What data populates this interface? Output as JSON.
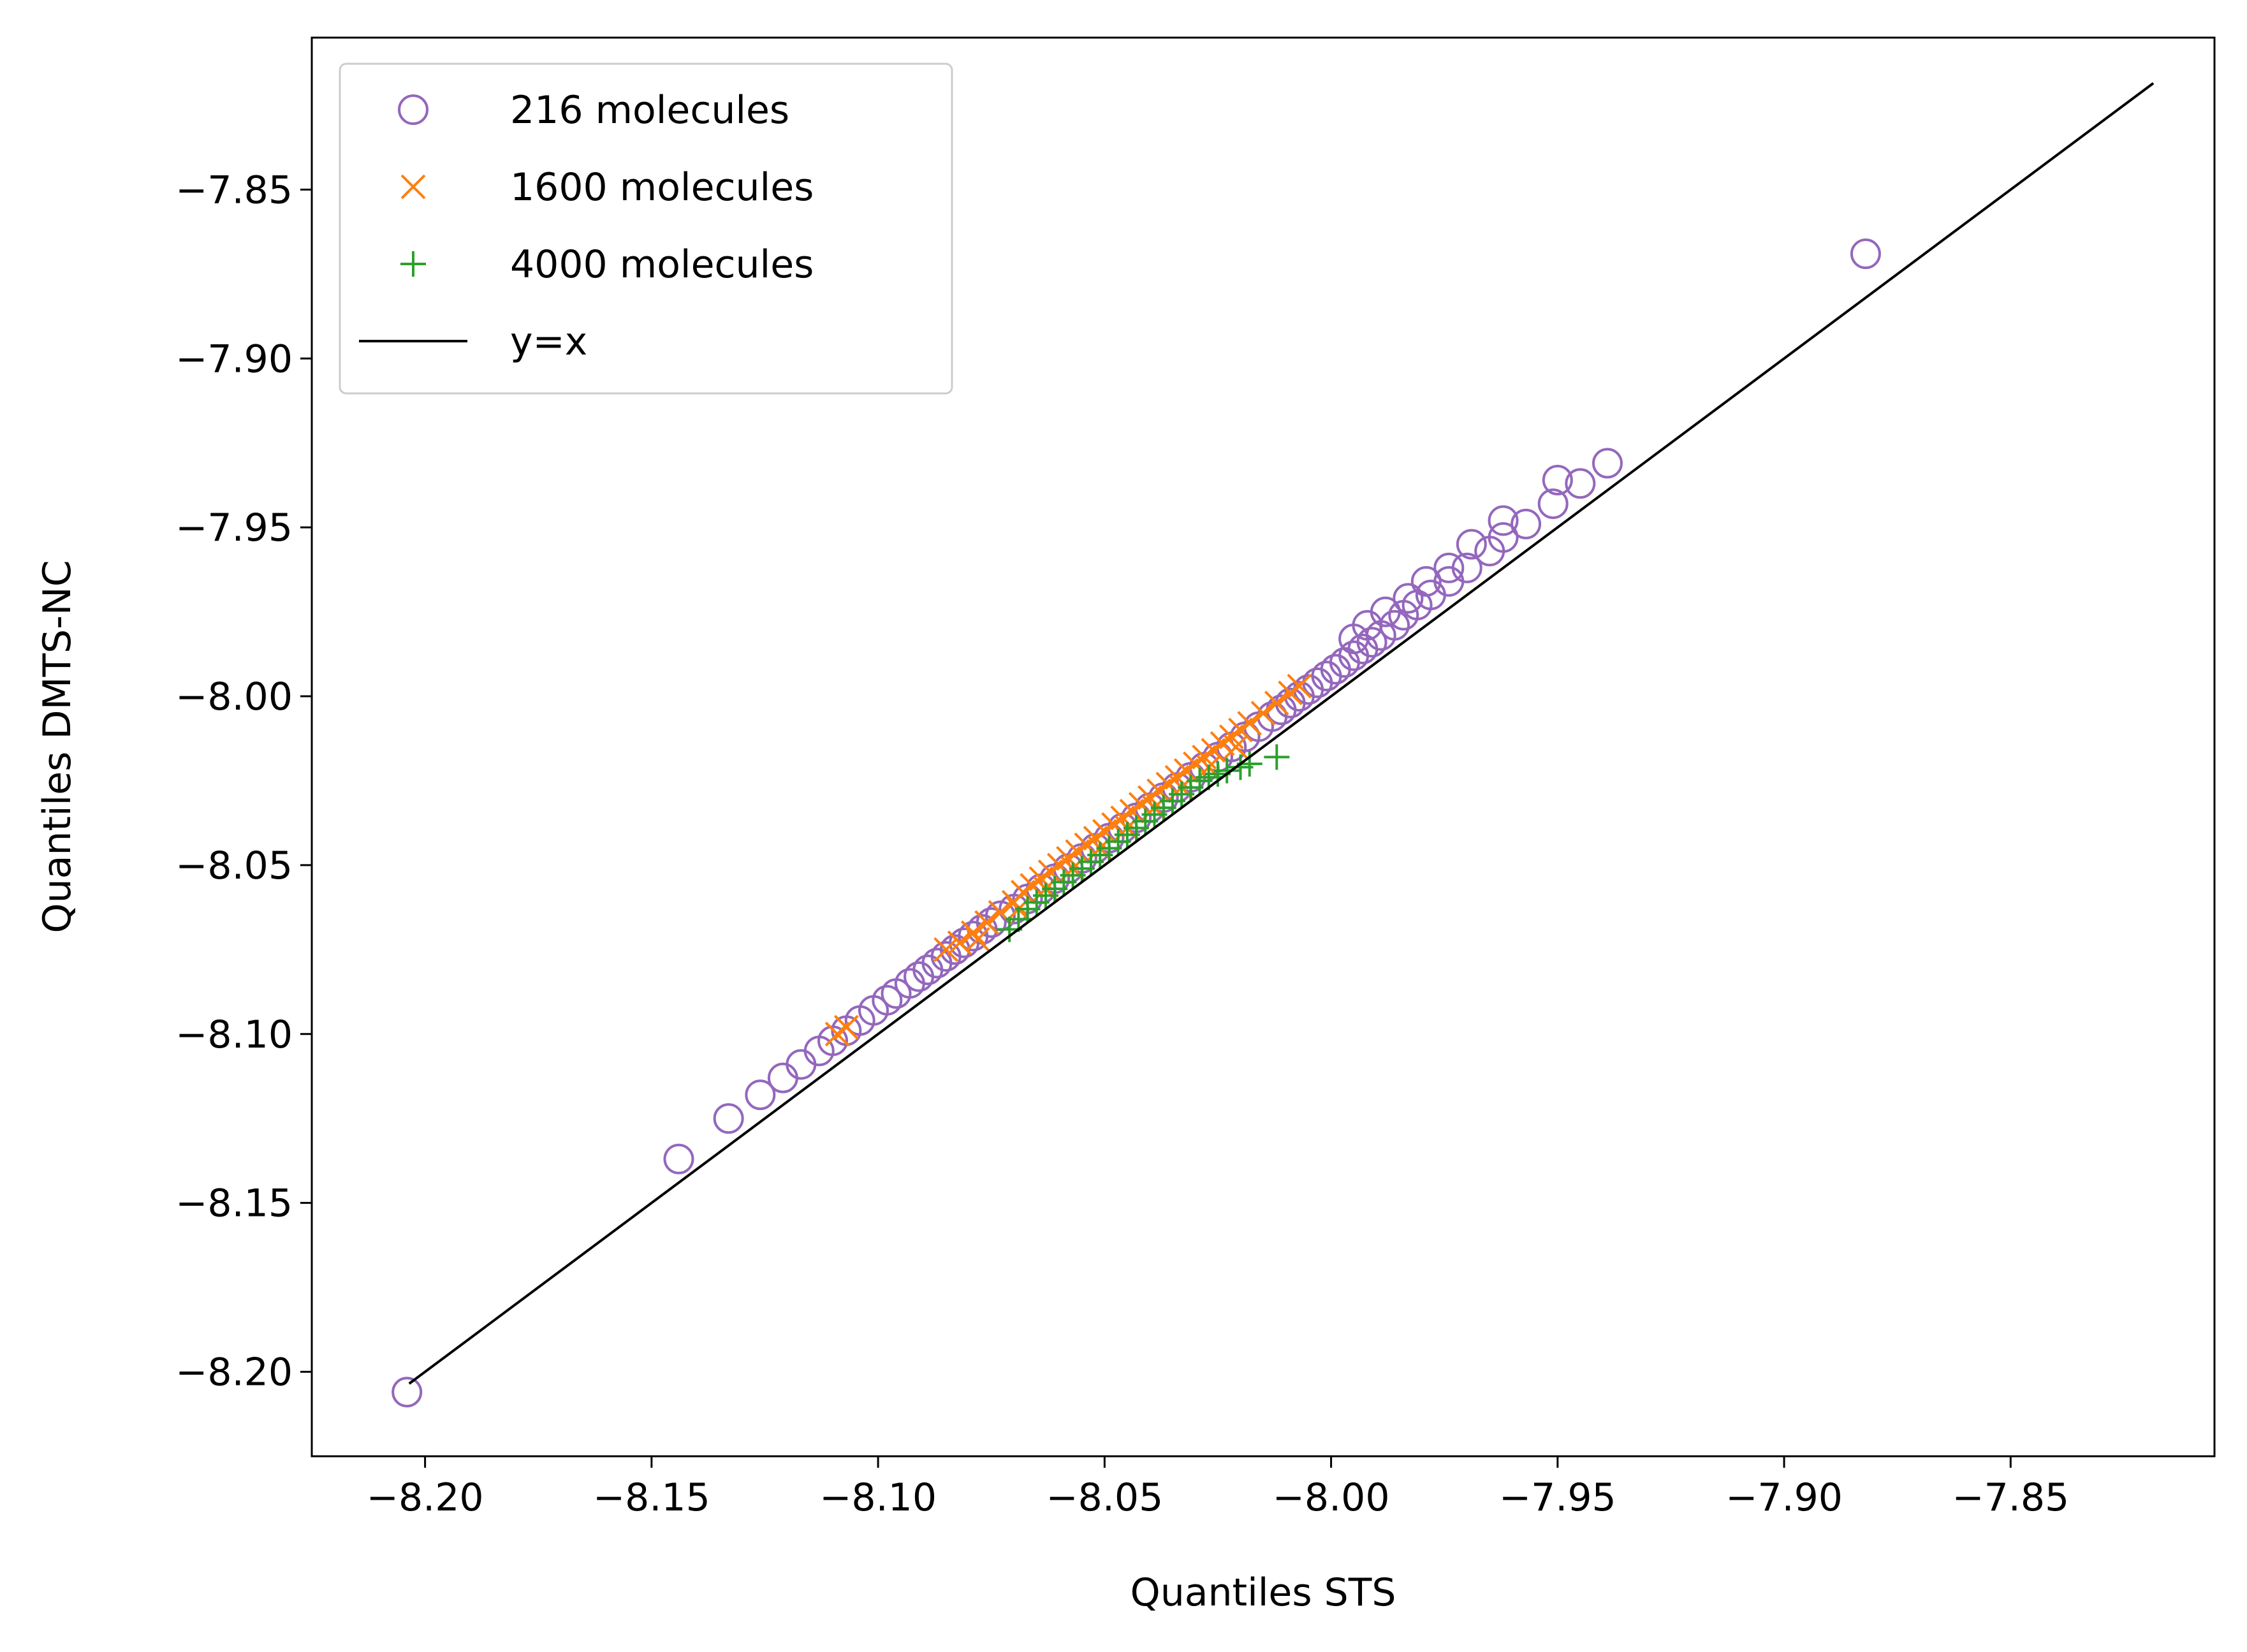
{
  "chart_data": {
    "type": "scatter",
    "title": "",
    "xlabel": "Quantiles STS",
    "ylabel": "Quantiles DMTS-NC",
    "xlim": [
      -8.225,
      -7.805
    ],
    "ylim": [
      -8.225,
      -7.805
    ],
    "xticks": [
      -8.2,
      -8.15,
      -8.1,
      -8.05,
      -8.0,
      -7.95,
      -7.9,
      -7.85
    ],
    "yticks": [
      -8.2,
      -8.15,
      -8.1,
      -8.05,
      -8.0,
      -7.95,
      -7.9,
      -7.85
    ],
    "xtick_labels": [
      "−8.20",
      "−8.15",
      "−8.10",
      "−8.05",
      "−8.00",
      "−7.95",
      "−7.90",
      "−7.85"
    ],
    "ytick_labels": [
      "−8.20",
      "−8.15",
      "−8.10",
      "−8.05",
      "−8.00",
      "−7.95",
      "−7.90",
      "−7.85"
    ],
    "grid": false,
    "legend_position": "upper-left",
    "series": [
      {
        "name": "216 molecules",
        "marker": "open-circle",
        "color": "#9467bd",
        "points": [
          [
            -8.204,
            -8.206
          ],
          [
            -8.144,
            -8.137
          ],
          [
            -8.133,
            -8.125
          ],
          [
            -8.126,
            -8.118
          ],
          [
            -8.121,
            -8.113
          ],
          [
            -8.117,
            -8.109
          ],
          [
            -8.113,
            -8.105
          ],
          [
            -8.11,
            -8.102
          ],
          [
            -8.107,
            -8.099
          ],
          [
            -8.104,
            -8.096
          ],
          [
            -8.101,
            -8.093
          ],
          [
            -8.098,
            -8.09
          ],
          [
            -8.096,
            -8.088
          ],
          [
            -8.093,
            -8.085
          ],
          [
            -8.091,
            -8.083
          ],
          [
            -8.089,
            -8.081
          ],
          [
            -8.087,
            -8.079
          ],
          [
            -8.085,
            -8.077
          ],
          [
            -8.083,
            -8.075
          ],
          [
            -8.081,
            -8.073
          ],
          [
            -8.079,
            -8.071
          ],
          [
            -8.077,
            -8.069
          ],
          [
            -8.075,
            -8.067
          ],
          [
            -8.073,
            -8.065
          ],
          [
            -8.07,
            -8.063
          ],
          [
            -8.067,
            -8.06
          ],
          [
            -8.064,
            -8.057
          ],
          [
            -8.061,
            -8.054
          ],
          [
            -8.058,
            -8.051
          ],
          [
            -8.055,
            -8.048
          ],
          [
            -8.052,
            -8.045
          ],
          [
            -8.049,
            -8.042
          ],
          [
            -8.046,
            -8.039
          ],
          [
            -8.043,
            -8.036
          ],
          [
            -8.04,
            -8.033
          ],
          [
            -8.037,
            -8.03
          ],
          [
            -8.034,
            -8.027
          ],
          [
            -8.031,
            -8.024
          ],
          [
            -8.028,
            -8.021
          ],
          [
            -8.025,
            -8.018
          ],
          [
            -8.022,
            -8.015
          ],
          [
            -8.019,
            -8.012
          ],
          [
            -8.016,
            -8.009
          ],
          [
            -8.013,
            -8.006
          ],
          [
            -8.011,
            -8.004
          ],
          [
            -8.009,
            -8.002
          ],
          [
            -8.007,
            -8.0
          ],
          [
            -8.005,
            -7.998
          ],
          [
            -8.003,
            -7.996
          ],
          [
            -8.001,
            -7.994
          ],
          [
            -7.999,
            -7.992
          ],
          [
            -7.997,
            -7.99
          ],
          [
            -7.995,
            -7.988
          ],
          [
            -7.993,
            -7.986
          ],
          [
            -7.991,
            -7.984
          ],
          [
            -7.989,
            -7.982
          ],
          [
            -7.986,
            -7.979
          ],
          [
            -7.984,
            -7.976
          ],
          [
            -7.981,
            -7.973
          ],
          [
            -7.978,
            -7.97
          ],
          [
            -7.974,
            -7.966
          ],
          [
            -7.97,
            -7.962
          ],
          [
            -7.965,
            -7.957
          ],
          [
            -7.962,
            -7.953
          ],
          [
            -7.957,
            -7.949
          ],
          [
            -7.951,
            -7.943
          ],
          [
            -7.945,
            -7.937
          ],
          [
            -7.939,
            -7.931
          ],
          [
            -7.962,
            -7.948
          ],
          [
            -7.969,
            -7.955
          ],
          [
            -7.974,
            -7.962
          ],
          [
            -7.979,
            -7.966
          ],
          [
            -7.983,
            -7.971
          ],
          [
            -7.988,
            -7.975
          ],
          [
            -7.992,
            -7.979
          ],
          [
            -7.995,
            -7.983
          ],
          [
            -7.95,
            -7.936
          ],
          [
            -7.882,
            -7.869
          ]
        ]
      },
      {
        "name": "1600 molecules",
        "marker": "x",
        "color": "#ff7f0e",
        "points": [
          [
            -8.109,
            -8.1
          ],
          [
            -8.107,
            -8.098
          ],
          [
            -8.085,
            -8.075
          ],
          [
            -8.082,
            -8.073
          ],
          [
            -8.079,
            -8.07
          ],
          [
            -8.076,
            -8.067
          ],
          [
            -8.073,
            -8.064
          ],
          [
            -8.07,
            -8.061
          ],
          [
            -8.068,
            -8.058
          ],
          [
            -8.066,
            -8.056
          ],
          [
            -8.064,
            -8.054
          ],
          [
            -8.062,
            -8.052
          ],
          [
            -8.06,
            -8.05
          ],
          [
            -8.058,
            -8.048
          ],
          [
            -8.056,
            -8.046
          ],
          [
            -8.054,
            -8.044
          ],
          [
            -8.052,
            -8.042
          ],
          [
            -8.05,
            -8.04
          ],
          [
            -8.048,
            -8.038
          ],
          [
            -8.046,
            -8.036
          ],
          [
            -8.044,
            -8.034
          ],
          [
            -8.042,
            -8.032
          ],
          [
            -8.04,
            -8.03
          ],
          [
            -8.038,
            -8.028
          ],
          [
            -8.036,
            -8.026
          ],
          [
            -8.034,
            -8.024
          ],
          [
            -8.032,
            -8.022
          ],
          [
            -8.03,
            -8.02
          ],
          [
            -8.028,
            -8.018
          ],
          [
            -8.026,
            -8.016
          ],
          [
            -8.024,
            -8.014
          ],
          [
            -8.022,
            -8.012
          ],
          [
            -8.02,
            -8.01
          ],
          [
            -8.018,
            -8.008
          ],
          [
            -8.015,
            -8.005
          ],
          [
            -8.012,
            -8.002
          ],
          [
            -8.009,
            -7.999
          ],
          [
            -8.007,
            -7.997
          ],
          [
            -8.078,
            -8.072
          ],
          [
            -8.069,
            -8.063
          ],
          [
            -8.063,
            -8.057
          ],
          [
            -8.057,
            -8.051
          ],
          [
            -8.051,
            -8.045
          ],
          [
            -8.045,
            -8.039
          ],
          [
            -8.039,
            -8.033
          ],
          [
            -8.033,
            -8.027
          ],
          [
            -8.027,
            -8.021
          ],
          [
            -8.021,
            -8.015
          ]
        ]
      },
      {
        "name": "4000 molecules",
        "marker": "plus",
        "color": "#2ca02c",
        "points": [
          [
            -8.071,
            -8.069
          ],
          [
            -8.069,
            -8.066
          ],
          [
            -8.067,
            -8.063
          ],
          [
            -8.065,
            -8.061
          ],
          [
            -8.063,
            -8.059
          ],
          [
            -8.061,
            -8.057
          ],
          [
            -8.059,
            -8.055
          ],
          [
            -8.057,
            -8.053
          ],
          [
            -8.055,
            -8.051
          ],
          [
            -8.053,
            -8.049
          ],
          [
            -8.051,
            -8.047
          ],
          [
            -8.049,
            -8.045
          ],
          [
            -8.047,
            -8.043
          ],
          [
            -8.045,
            -8.041
          ],
          [
            -8.043,
            -8.039
          ],
          [
            -8.041,
            -8.037
          ],
          [
            -8.039,
            -8.035
          ],
          [
            -8.037,
            -8.033
          ],
          [
            -8.035,
            -8.031
          ],
          [
            -8.033,
            -8.029
          ],
          [
            -8.031,
            -8.027
          ],
          [
            -8.029,
            -8.025
          ],
          [
            -8.027,
            -8.024
          ],
          [
            -8.025,
            -8.023
          ],
          [
            -8.023,
            -8.022
          ],
          [
            -8.02,
            -8.021
          ],
          [
            -8.018,
            -8.02
          ],
          [
            -8.012,
            -8.018
          ]
        ]
      },
      {
        "name": "y=x",
        "marker": "line",
        "color": "#000000",
        "points": [
          [
            -8.2035,
            -8.2035
          ],
          [
            -7.8185,
            -7.8185
          ]
        ]
      }
    ]
  }
}
